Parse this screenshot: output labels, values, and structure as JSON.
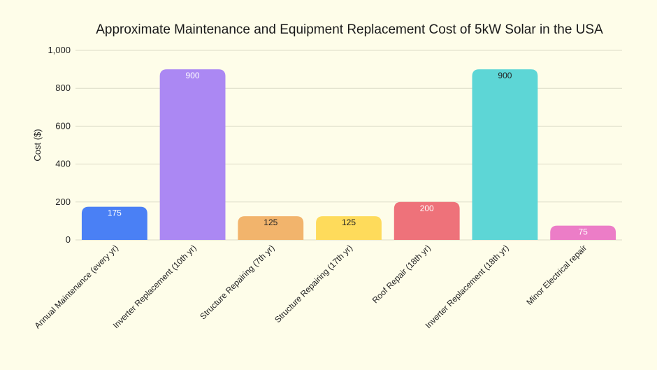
{
  "chart_data": {
    "type": "bar",
    "title": "Approximate Maintenance and Equipment Replacement Cost of 5kW Solar in the USA",
    "xlabel": "",
    "ylabel": "Cost ($)",
    "ylim": [
      0,
      1000
    ],
    "yticks": [
      0,
      200,
      400,
      600,
      800,
      1000
    ],
    "ytick_labels": [
      "0",
      "200",
      "400",
      "600",
      "800",
      "1,000"
    ],
    "grid": true,
    "categories": [
      "Annual Maintenance (every yr)",
      "Inverter Replacement (10th yr)",
      "Structure Repairing (7th yr)",
      "Structure Repairing (17th yr)",
      "Roof Repair (18th yr)",
      "Inverter Replacement (18th yr)",
      "Minor Electrical repair"
    ],
    "values": [
      175,
      900,
      125,
      125,
      200,
      900,
      75
    ],
    "colors": [
      "#4a80f5",
      "#ab88f3",
      "#f2b46c",
      "#fedb5b",
      "#ee727a",
      "#5dd6d6",
      "#ec7dc7"
    ],
    "label_colors": [
      "#ffffff",
      "#ffffff",
      "#222222",
      "#222222",
      "#ffffff",
      "#222222",
      "#ffffff"
    ]
  }
}
